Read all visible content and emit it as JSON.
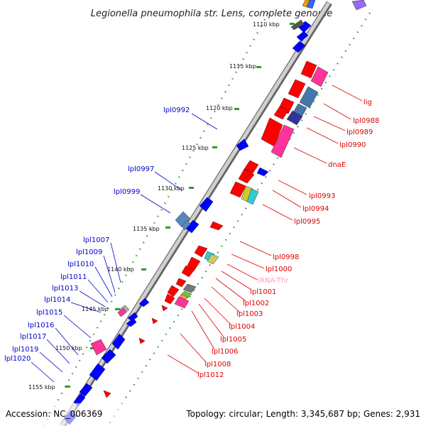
{
  "title": "Legionella pneumophila str. Lens, complete genome",
  "footer": {
    "accession": "Accession: NC_006369",
    "topology": "Topology: circular; Length: 3,345,687 bp; Genes: 2,931"
  },
  "colors": {
    "forward": "#ff0000",
    "reverse": "#0000ff",
    "rna": "#ff99cc",
    "backbone": "#555555",
    "gc_dots": "#339933"
  },
  "ticks": [
    "1110 kbp",
    "1115 kbp",
    "1120 kbp",
    "1125 kbp",
    "1130 kbp",
    "1135 kbp",
    "1140 kbp",
    "1145 kbp",
    "1150 kbp",
    "1155 kbp"
  ],
  "left_labels": [
    "lpl0992",
    "lpl0997",
    "lpl0999",
    "lpl1007",
    "lpl1009",
    "lpl1010",
    "lpl1011",
    "lpl1013",
    "lpl1014",
    "lpl1015",
    "lpl1016",
    "lpl1017",
    "lpl1019",
    "lpl1020"
  ],
  "right_labels": [
    "lig",
    "lpl0988",
    "lpl0989",
    "lpl0990",
    "dnaE",
    "lpl0993",
    "lpl0994",
    "lpl0995",
    "lpl0998",
    "lpl1000",
    "tRNA-Thr",
    "lpl1001",
    "lpl1002",
    "lpl1003",
    "lpl1004",
    "lpl1005",
    "lpl1006",
    "lpl1008",
    "lpl1012"
  ]
}
